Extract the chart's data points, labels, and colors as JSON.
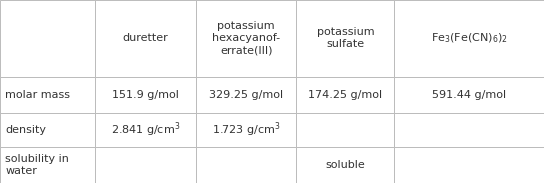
{
  "col_headers": [
    "duretter",
    "potassium\nhexacyanof-\nerrate(III)",
    "potassium\nsulfate",
    "Fe$_3$(Fe(CN)$_6$)$_2$"
  ],
  "row_headers": [
    "molar mass",
    "density",
    "solubility in\nwater"
  ],
  "cells": [
    [
      "151.9 g/mol",
      "329.25 g/mol",
      "174.25 g/mol",
      "591.44 g/mol"
    ],
    [
      "2.841 g/cm$^3$",
      "1.723 g/cm$^3$",
      "",
      ""
    ],
    [
      "",
      "",
      "soluble",
      ""
    ]
  ],
  "background_color": "#ffffff",
  "border_color": "#bbbbbb",
  "text_color": "#333333",
  "fontsize": 8.0,
  "col_starts": [
    0.0,
    0.175,
    0.36,
    0.545,
    0.725
  ],
  "col_ends": [
    0.175,
    0.36,
    0.545,
    0.725,
    1.0
  ],
  "row_tops": [
    1.0,
    0.58,
    0.385,
    0.195
  ],
  "row_bottoms": [
    0.58,
    0.385,
    0.195,
    0.0
  ]
}
